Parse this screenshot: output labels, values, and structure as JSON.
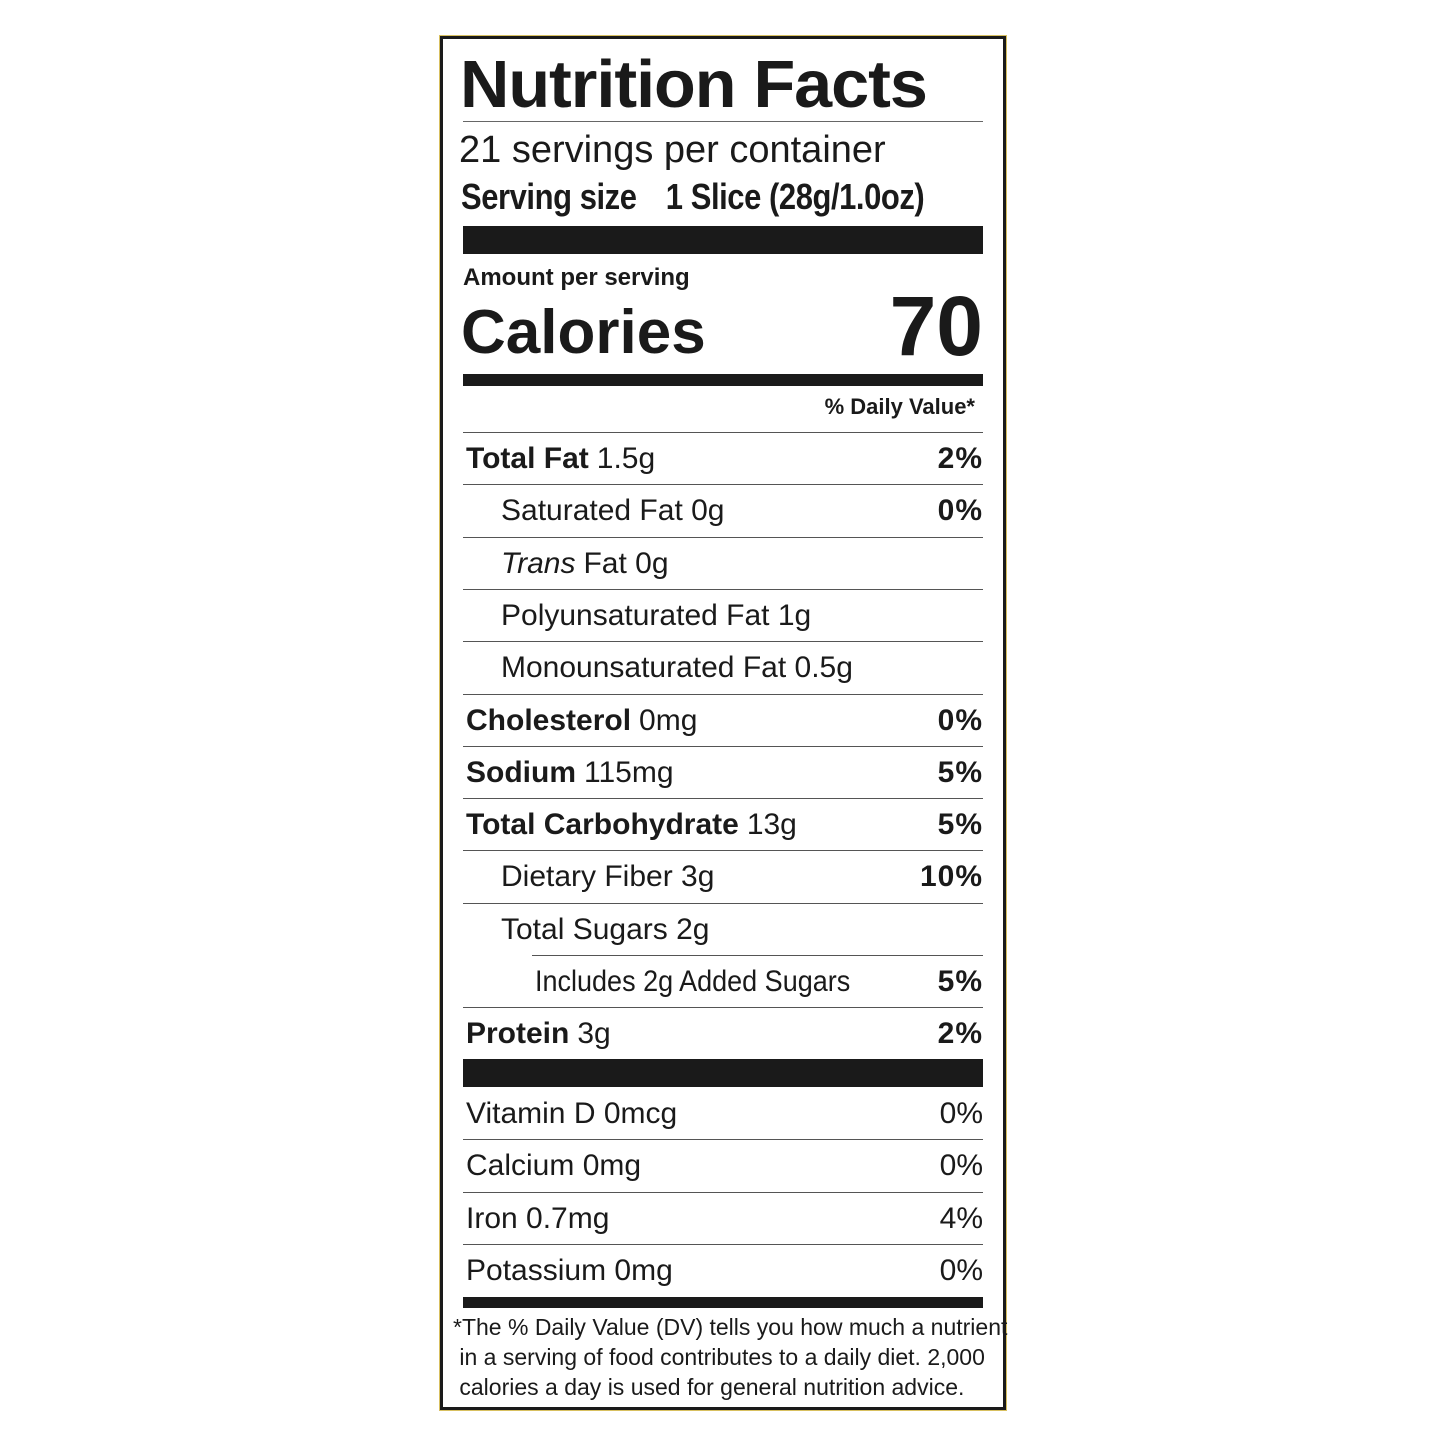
{
  "title": "Nutrition Facts",
  "servings_per_container": "21 servings per container",
  "serving_size_label": "Serving size",
  "serving_size_value": "1 Slice (28g/1.0oz)",
  "amount_per_serving": "Amount per serving",
  "calories_label": "Calories",
  "calories_value": "70",
  "daily_value_header": "% Daily Value*",
  "nutrients": [
    {
      "name": "Total Fat",
      "amount": "1.5g",
      "dv": "2%"
    },
    {
      "name": "Saturated Fat 0g",
      "dv": "0%"
    },
    {
      "name_italic": "Trans",
      "name": "Fat 0g"
    },
    {
      "name": "Polyunsaturated Fat 1g"
    },
    {
      "name": "Monounsaturated Fat 0.5g"
    },
    {
      "name": "Cholesterol",
      "amount": "0mg",
      "dv": "0%"
    },
    {
      "name": "Sodium",
      "amount": "115mg",
      "dv": "5%"
    },
    {
      "name": "Total Carbohydrate",
      "amount": "13g",
      "dv": "5%"
    },
    {
      "name": "Dietary Fiber 3g",
      "dv": "10%"
    },
    {
      "name": "Total Sugars 2g"
    },
    {
      "name": "Includes 2g Added Sugars",
      "dv": "5%"
    },
    {
      "name": "Protein",
      "amount": "3g",
      "dv": "2%"
    }
  ],
  "vitamins": [
    {
      "name": "Vitamin D 0mcg",
      "dv": "0%"
    },
    {
      "name": "Calcium 0mg",
      "dv": "0%"
    },
    {
      "name": "Iron 0.7mg",
      "dv": "4%"
    },
    {
      "name": "Potassium 0mg",
      "dv": "0%"
    }
  ],
  "footnote": [
    "*The % Daily Value (DV) tells you how much a nutrient",
    " in a serving of food contributes to a daily diet. 2,000",
    " calories a day is used for general nutrition advice."
  ]
}
